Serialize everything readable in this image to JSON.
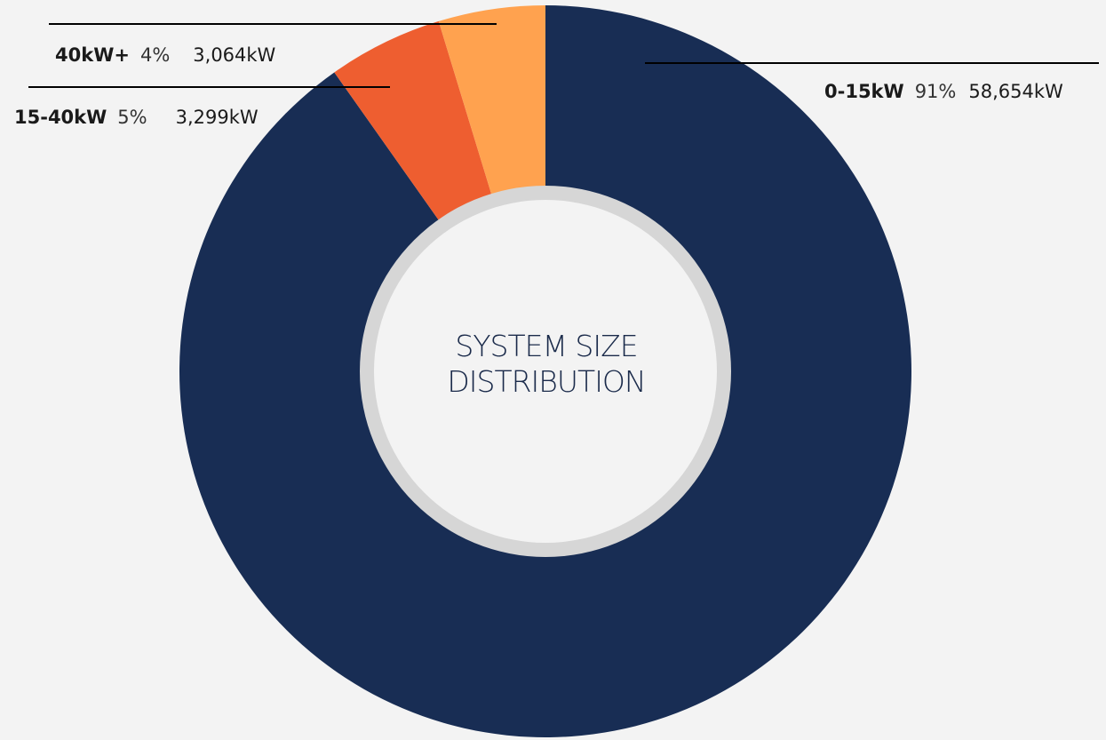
{
  "chart_data": {
    "type": "pie",
    "style": "donut",
    "center_label": "SYSTEM SIZE\nDISTRIBUTION",
    "slices": [
      {
        "category": "0-15kW",
        "percent_label": "91%",
        "value_label": "58,654kW",
        "value": 58654,
        "color": "#182d54"
      },
      {
        "category": "15-40kW",
        "percent_label": "5%",
        "value_label": "3,299kW",
        "value": 3299,
        "color": "#ee5e30"
      },
      {
        "category": "40kW+",
        "percent_label": "4%",
        "value_label": "3,064kW",
        "value": 3064,
        "color": "#ffa24f"
      }
    ]
  },
  "colors": {
    "background": "#f3f3f3",
    "inner_ring": "#d6d6d6",
    "inner_fill": "#f3f3f3"
  }
}
